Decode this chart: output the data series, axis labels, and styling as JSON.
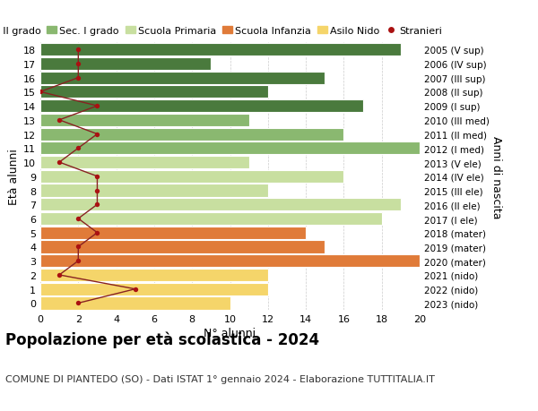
{
  "ages": [
    0,
    1,
    2,
    3,
    4,
    5,
    6,
    7,
    8,
    9,
    10,
    11,
    12,
    13,
    14,
    15,
    16,
    17,
    18
  ],
  "years": [
    "2023 (nido)",
    "2022 (nido)",
    "2021 (nido)",
    "2020 (mater)",
    "2019 (mater)",
    "2018 (mater)",
    "2017 (I ele)",
    "2016 (II ele)",
    "2015 (III ele)",
    "2014 (IV ele)",
    "2013 (V ele)",
    "2012 (I med)",
    "2011 (II med)",
    "2010 (III med)",
    "2009 (I sup)",
    "2008 (II sup)",
    "2007 (III sup)",
    "2006 (IV sup)",
    "2005 (V sup)"
  ],
  "bar_values": [
    10,
    12,
    12,
    20,
    15,
    14,
    18,
    19,
    12,
    16,
    11,
    20,
    16,
    11,
    17,
    12,
    15,
    9,
    19
  ],
  "bar_colors": [
    "#f5d56a",
    "#f5d56a",
    "#f5d56a",
    "#e07b39",
    "#e07b39",
    "#e07b39",
    "#c8dfa0",
    "#c8dfa0",
    "#c8dfa0",
    "#c8dfa0",
    "#c8dfa0",
    "#8ab870",
    "#8ab870",
    "#8ab870",
    "#4a7a3d",
    "#4a7a3d",
    "#4a7a3d",
    "#4a7a3d",
    "#4a7a3d"
  ],
  "stranieri_values": [
    2,
    5,
    1,
    2,
    2,
    3,
    2,
    3,
    3,
    3,
    1,
    2,
    3,
    1,
    3,
    0,
    2,
    2,
    2
  ],
  "stranieri_color": "#aa1111",
  "line_color": "#882222",
  "xlabel": "N° alunni",
  "ylabel": "Età alunni",
  "ylabel_right": "Anni di nascita",
  "title": "Popolazione per età scolastica - 2024",
  "subtitle": "COMUNE DI PIANTEDO (SO) - Dati ISTAT 1° gennaio 2024 - Elaborazione TUTTITALIA.IT",
  "xlim": [
    0,
    20
  ],
  "legend_labels": [
    "Sec. II grado",
    "Sec. I grado",
    "Scuola Primaria",
    "Scuola Infanzia",
    "Asilo Nido",
    "Stranieri"
  ],
  "legend_colors": [
    "#4a7a3d",
    "#8ab870",
    "#c8dfa0",
    "#e07b39",
    "#f5d56a",
    "#aa1111"
  ],
  "bar_height": 0.9,
  "grid_color": "#cccccc",
  "bg_color": "#ffffff",
  "title_fontsize": 12,
  "subtitle_fontsize": 8,
  "tick_fontsize": 8,
  "label_fontsize": 9,
  "legend_fontsize": 8
}
